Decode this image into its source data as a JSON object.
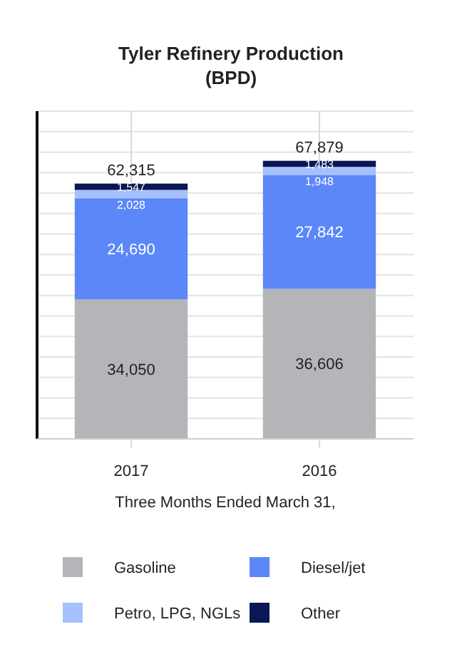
{
  "chart_data": {
    "type": "bar",
    "title": "Tyler Refinery Production",
    "subtitle": "(BPD)",
    "xlabel": "Three Months Ended March 31,",
    "categories": [
      "2017",
      "2016"
    ],
    "stacked": true,
    "series": [
      {
        "name": "Gasoline",
        "color": "#b4b5b9",
        "values": [
          34050,
          36606
        ],
        "value_labels": [
          "34,050",
          "36,606"
        ]
      },
      {
        "name": "Diesel/jet",
        "color": "#5b87f8",
        "values": [
          24690,
          27842
        ],
        "value_labels": [
          "24,690",
          "27,842"
        ]
      },
      {
        "name": "Petro, LPG, NGLs",
        "color": "#a5c0fd",
        "values": [
          2028,
          1948
        ],
        "value_labels": [
          "2,028",
          "1,948"
        ]
      },
      {
        "name": "Other",
        "color": "#0b1656",
        "values": [
          1547,
          1483
        ],
        "value_labels": [
          "1,547",
          "1,483"
        ]
      }
    ],
    "totals": [
      "62,315",
      "67,879"
    ],
    "ylim": [
      0,
      80000
    ],
    "yticks": [
      {
        "value": 0,
        "label": null
      },
      {
        "value": 5000,
        "label": null
      },
      {
        "value": 10000,
        "label": null
      },
      {
        "value": 15000,
        "label": null
      },
      {
        "value": 20000,
        "label": null
      },
      {
        "value": 25000,
        "label": null
      },
      {
        "value": 30000,
        "label": null
      },
      {
        "value": 35000,
        "label": null
      },
      {
        "value": 40000,
        "label": null
      },
      {
        "value": 45000,
        "label": null
      },
      {
        "value": 50000,
        "label": null
      },
      {
        "value": 55000,
        "label": null
      },
      {
        "value": 60000,
        "label": null
      },
      {
        "value": 65000,
        "label": null
      },
      {
        "value": 70000,
        "label": null
      },
      {
        "value": 75000,
        "label": null
      },
      {
        "value": 80000,
        "label": null
      }
    ],
    "tick_labels": "x",
    "grid": true,
    "legend": "bottom"
  }
}
